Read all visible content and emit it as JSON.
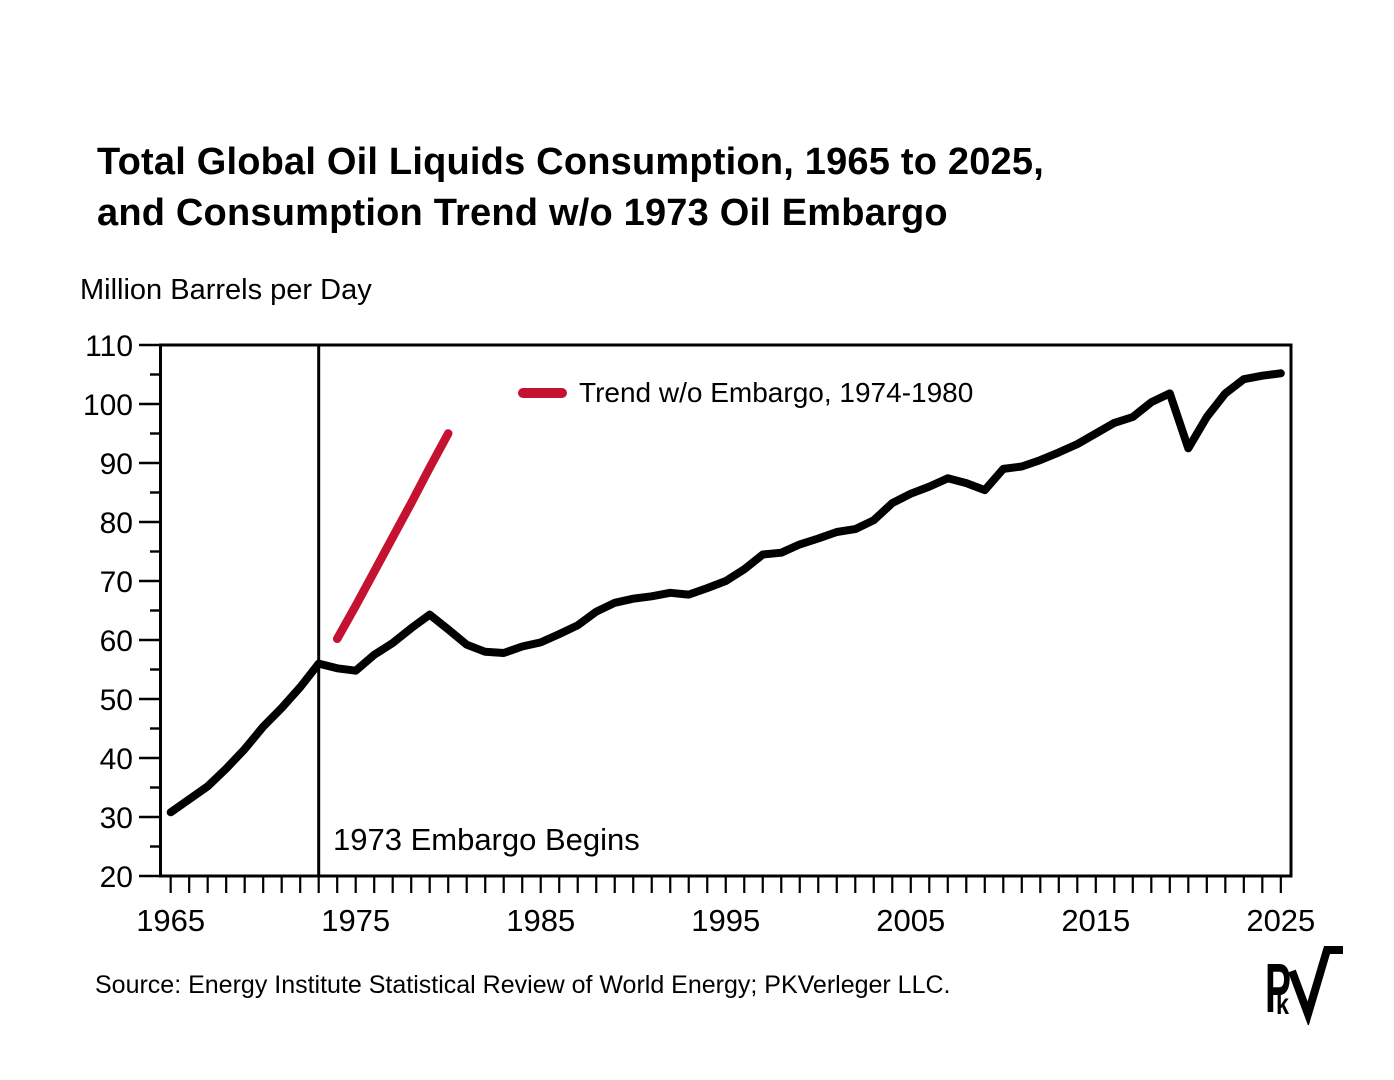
{
  "title": {
    "line1": "Total Global Oil Liquids Consumption, 1965 to 2025,",
    "line2": "and Consumption Trend w/o 1973 Oil Embargo"
  },
  "unit_label": "Million Barrels per Day",
  "source": "Source: Energy Institute Statistical Review of World Energy; PKVerleger LLC.",
  "logo": {
    "p": "P",
    "k": "k"
  },
  "colors": {
    "line": "#000000",
    "trend": "#C41230"
  },
  "chart_data": {
    "type": "line",
    "title": "Total Global Oil Liquids Consumption, 1965 to 2025, and Consumption Trend w/o 1973 Oil Embargo",
    "xlabel": "",
    "ylabel": "Million Barrels per Day",
    "xlim": [
      1964.45,
      2025.55
    ],
    "ylim": [
      20,
      110
    ],
    "y_major_tick_step": 10,
    "y_minor_tick_step": 5,
    "x_minor_tick_step": 1,
    "x_major_ticks": [
      1965,
      1975,
      1985,
      1995,
      2005,
      2015,
      2025
    ],
    "y_major_ticks": [
      20,
      30,
      40,
      50,
      60,
      70,
      80,
      90,
      100,
      110
    ],
    "grid": false,
    "legend": {
      "position": "inside-top-left",
      "entries": [
        {
          "label": "Trend w/o Embargo, 1974-1980",
          "color": "#C41230"
        }
      ]
    },
    "annotation": {
      "vline_x": 1973,
      "label": "1973 Embargo Begins"
    },
    "series": [
      {
        "name": "Total global oil liquids consumption",
        "color": "#000000",
        "stroke_width": 8,
        "x": [
          1965,
          1966,
          1967,
          1968,
          1969,
          1970,
          1971,
          1972,
          1973,
          1974,
          1975,
          1976,
          1977,
          1978,
          1979,
          1980,
          1981,
          1982,
          1983,
          1984,
          1985,
          1986,
          1987,
          1988,
          1989,
          1990,
          1991,
          1992,
          1993,
          1994,
          1995,
          1996,
          1997,
          1998,
          1999,
          2000,
          2001,
          2002,
          2003,
          2004,
          2005,
          2006,
          2007,
          2008,
          2009,
          2010,
          2011,
          2012,
          2013,
          2014,
          2015,
          2016,
          2017,
          2018,
          2019,
          2020,
          2021,
          2022,
          2023,
          2024,
          2025
        ],
        "values": [
          30.8,
          33.0,
          35.2,
          38.2,
          41.5,
          45.3,
          48.5,
          52.0,
          56.0,
          55.2,
          54.8,
          57.5,
          59.5,
          62.0,
          64.3,
          61.8,
          59.2,
          58.0,
          57.8,
          58.9,
          59.6,
          61.0,
          62.5,
          64.8,
          66.3,
          67.0,
          67.4,
          68.0,
          67.7,
          68.8,
          70.0,
          72.0,
          74.5,
          74.8,
          76.2,
          77.2,
          78.3,
          78.8,
          80.3,
          83.2,
          84.8,
          86.0,
          87.4,
          86.6,
          85.4,
          89.0,
          89.4,
          90.5,
          91.8,
          93.2,
          95.0,
          96.8,
          97.8,
          100.3,
          101.8,
          92.5,
          97.8,
          101.8,
          104.2,
          104.8,
          105.2
        ]
      },
      {
        "name": "Trend w/o Embargo, 1974-1980",
        "color": "#C41230",
        "stroke_width": 8.5,
        "x": [
          1974,
          1975,
          1976,
          1977,
          1978,
          1979,
          1980
        ],
        "values": [
          60.2,
          65.8,
          71.6,
          77.4,
          83.2,
          89.2,
          95.0
        ]
      }
    ]
  }
}
